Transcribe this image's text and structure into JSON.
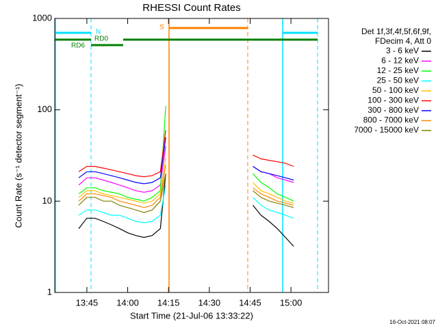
{
  "chart_data": {
    "type": "line",
    "title": "RHESSI Count Rates",
    "xlabel": "Start Time (21-Jul-06 13:33:22)",
    "ylabel": "Count Rate (s⁻¹ detector segment⁻¹)",
    "log_y": true,
    "xlim": [
      813.2,
      913.8
    ],
    "xticks": [
      {
        "value": 825,
        "label": "13:45"
      },
      {
        "value": 840,
        "label": "14:00"
      },
      {
        "value": 855,
        "label": "14:15"
      },
      {
        "value": 870,
        "label": "14:30"
      },
      {
        "value": 885,
        "label": "14:45"
      },
      {
        "value": 900,
        "label": "15:00"
      }
    ],
    "ylim": [
      1,
      1000
    ],
    "yticks": [
      1,
      10,
      100,
      1000
    ],
    "legend_title": [
      "Det 1f,3f,4f,5f,6f,9f,",
      "FDecim 4, Att 0"
    ],
    "annotations": [
      "N",
      "RD0",
      "RD6",
      "S"
    ],
    "footer": "16-Oct-2021 08:07",
    "x": [
      822,
      825,
      828,
      831,
      834,
      837,
      840,
      843,
      846,
      849,
      852,
      854,
      870,
      886,
      889,
      892,
      895,
      898,
      901
    ],
    "series": [
      {
        "name": "3 - 6 keV",
        "color": "#000000",
        "values": [
          5,
          6.5,
          6.5,
          6,
          5.5,
          5,
          4.5,
          4.2,
          4,
          4.2,
          5,
          20,
          null,
          9,
          7,
          6,
          5,
          4,
          3.2
        ]
      },
      {
        "name": "6 - 12 keV",
        "color": "#ff00ff",
        "values": [
          15,
          18,
          18,
          17,
          16,
          15,
          14,
          13,
          12.5,
          13,
          15,
          40,
          null,
          24,
          21,
          20,
          18,
          17,
          16
        ]
      },
      {
        "name": "12 - 25 keV",
        "color": "#00ff00",
        "values": [
          12,
          14,
          14,
          13,
          12.5,
          12,
          11,
          10.5,
          10,
          11,
          13,
          110,
          null,
          20,
          16,
          14,
          12,
          11,
          10
        ]
      },
      {
        "name": "25 - 50 keV",
        "color": "#00ffff",
        "values": [
          7,
          8,
          8,
          7.5,
          7,
          7,
          6.5,
          6,
          5.8,
          6,
          7,
          15,
          null,
          11,
          9,
          8,
          7.5,
          7,
          6.5
        ]
      },
      {
        "name": "50 - 100 keV",
        "color": "#ffc000",
        "values": [
          11,
          13,
          13,
          12,
          11.5,
          11,
          10.5,
          10,
          9.5,
          10,
          12,
          30,
          null,
          16,
          13,
          12,
          11,
          10,
          9.5
        ]
      },
      {
        "name": "100 - 300 keV",
        "color": "#ff0000",
        "values": [
          21,
          24,
          24,
          23,
          22,
          21,
          20,
          19,
          18.5,
          19,
          21,
          60,
          null,
          32,
          29,
          28,
          27,
          26,
          24
        ]
      },
      {
        "name": "300 - 800 keV",
        "color": "#0000ff",
        "values": [
          18,
          21,
          21,
          20,
          19,
          18,
          17,
          16,
          15.5,
          16,
          18,
          50,
          null,
          24,
          21,
          20,
          19,
          18,
          17
        ]
      },
      {
        "name": "800 - 7000 keV",
        "color": "#ff8000",
        "values": [
          10,
          12,
          12,
          11.5,
          11,
          10,
          9.5,
          9,
          8.5,
          9,
          11,
          25,
          null,
          14,
          12,
          11,
          10,
          9.5,
          9
        ]
      },
      {
        "name": "7000 - 15000 keV",
        "color": "#808000",
        "values": [
          9,
          11,
          11,
          10,
          10,
          9,
          8.5,
          8,
          7.5,
          8,
          10,
          20,
          null,
          13,
          11,
          10,
          9.5,
          9,
          8.5
        ]
      }
    ]
  }
}
